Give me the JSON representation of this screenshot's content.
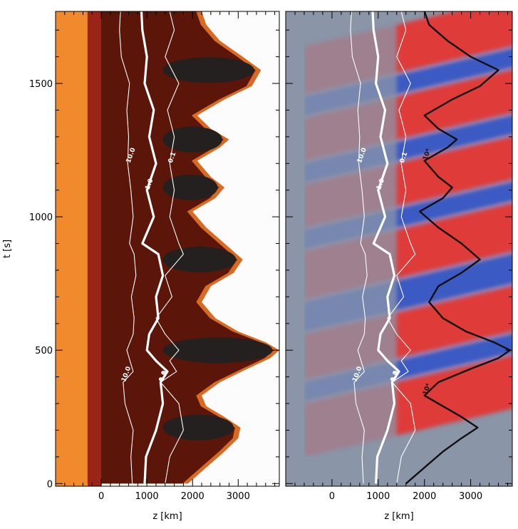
{
  "chart_data": [
    {
      "type": "heatmap",
      "panel": "left",
      "title": "",
      "xlabel": "z [km]",
      "ylabel": "t [s]",
      "xlim": [
        -1000,
        3900
      ],
      "ylim": [
        -10,
        1770
      ],
      "x_ticks": [
        0,
        1000,
        2000,
        3000
      ],
      "x_tick_labels": [
        "0",
        "1000",
        "2000",
        "3000"
      ],
      "y_ticks": [
        0,
        500,
        1000,
        1500
      ],
      "y_tick_labels": [
        "0",
        "500",
        "1000",
        "1500"
      ],
      "colors": {
        "photosphere": "#f08a2c",
        "band": "#9a2416",
        "body": "#5c1509",
        "hot": "#252020",
        "edge": "#d96a22",
        "corona": "#fcfcfc",
        "contour": "#ffffff"
      },
      "front_edge": {
        "t": [
          0,
          60,
          120,
          170,
          210,
          250,
          290,
          330,
          380,
          430,
          470,
          500,
          530,
          570,
          620,
          680,
          740,
          790,
          840,
          900,
          960,
          1020,
          1070,
          1110,
          1150,
          1210,
          1260,
          1290,
          1330,
          1380,
          1440,
          1490,
          1550,
          1600,
          1660,
          1720,
          1770
        ],
        "z": [
          1900,
          2300,
          2700,
          3000,
          3050,
          2700,
          2300,
          2200,
          2600,
          3200,
          3700,
          3900,
          3600,
          3000,
          2500,
          2200,
          2400,
          2900,
          3100,
          2700,
          2300,
          2000,
          2500,
          2700,
          2400,
          2100,
          2600,
          2800,
          2400,
          2100,
          2700,
          3300,
          3500,
          3100,
          2600,
          2300,
          2200
        ]
      },
      "contours": [
        {
          "label": "10.0",
          "t": [
            0,
            100,
            200,
            300,
            380,
            420,
            500,
            560,
            620,
            700,
            780,
            860,
            900,
            1000,
            1100,
            1200,
            1300,
            1400,
            1500,
            1600,
            1700,
            1770
          ],
          "z": [
            680,
            650,
            700,
            520,
            480,
            700,
            560,
            700,
            720,
            660,
            760,
            720,
            620,
            700,
            650,
            580,
            600,
            560,
            620,
            440,
            400,
            420
          ]
        },
        {
          "label": "1.0",
          "t": [
            0,
            100,
            200,
            300,
            380,
            420,
            460,
            500,
            560,
            620,
            700,
            780,
            860,
            900,
            960,
            1000,
            1100,
            1200,
            1300,
            1400,
            1500,
            1600,
            1700,
            1770
          ],
          "z": [
            950,
            980,
            1200,
            1350,
            1300,
            1450,
            1200,
            1000,
            1050,
            1250,
            1200,
            1350,
            1250,
            900,
            1050,
            1150,
            1000,
            1200,
            1050,
            1150,
            950,
            1000,
            900,
            880
          ]
        },
        {
          "label": "0.1",
          "t": [
            0,
            100,
            200,
            300,
            380,
            420,
            460,
            500,
            560,
            620,
            700,
            780,
            860,
            900,
            1000,
            1100,
            1200,
            1300,
            1400,
            1500,
            1600,
            1700,
            1770
          ],
          "z": [
            1400,
            1500,
            1800,
            1700,
            1300,
            1650,
            1500,
            1700,
            1400,
            1200,
            1550,
            1400,
            1800,
            1700,
            1500,
            1600,
            1500,
            1600,
            1450,
            1700,
            1400,
            1600,
            1500
          ]
        }
      ]
    },
    {
      "type": "heatmap",
      "panel": "right",
      "title": "",
      "xlabel": "z [km]",
      "ylabel": "",
      "xlim": [
        -1000,
        3900
      ],
      "ylim": [
        -10,
        1770
      ],
      "x_ticks": [
        0,
        1000,
        2000,
        3000
      ],
      "x_tick_labels": [
        "0",
        "1000",
        "2000",
        "3000"
      ],
      "y_ticks": [
        0,
        500,
        1000,
        1500
      ],
      "colors": {
        "background": "#8a95a8",
        "up": "#3050c8",
        "down": "#e8302c",
        "contour": "#ffffff",
        "shock": "#111111"
      },
      "bands": [
        {
          "kind": "down",
          "t0": 180,
          "t1": 380
        },
        {
          "kind": "up",
          "t0": 390,
          "t1": 460
        },
        {
          "kind": "down",
          "t0": 470,
          "t1": 640
        },
        {
          "kind": "up",
          "t0": 650,
          "t1": 760
        },
        {
          "kind": "down",
          "t0": 770,
          "t1": 950
        },
        {
          "kind": "up",
          "t0": 960,
          "t1": 1030
        },
        {
          "kind": "down",
          "t0": 1040,
          "t1": 1200
        },
        {
          "kind": "up",
          "t0": 1210,
          "t1": 1280
        },
        {
          "kind": "down",
          "t0": 1290,
          "t1": 1450
        },
        {
          "kind": "up",
          "t0": 1460,
          "t1": 1530
        },
        {
          "kind": "down",
          "t0": 1540,
          "t1": 1720
        }
      ],
      "contours": [
        {
          "label": "10.0",
          "t": [
            0,
            100,
            200,
            300,
            380,
            420,
            500,
            560,
            620,
            700,
            780,
            860,
            900,
            1000,
            1100,
            1200,
            1300,
            1400,
            1500,
            1600,
            1700,
            1770
          ],
          "z": [
            680,
            650,
            700,
            520,
            480,
            700,
            560,
            700,
            720,
            660,
            760,
            720,
            620,
            700,
            650,
            580,
            600,
            560,
            620,
            440,
            400,
            420
          ]
        },
        {
          "label": "1.0",
          "t": [
            0,
            100,
            200,
            300,
            380,
            420,
            460,
            500,
            560,
            620,
            700,
            780,
            860,
            900,
            960,
            1000,
            1100,
            1200,
            1300,
            1400,
            1500,
            1600,
            1700,
            1770
          ],
          "z": [
            950,
            980,
            1200,
            1350,
            1300,
            1450,
            1200,
            1000,
            1050,
            1250,
            1200,
            1350,
            1250,
            900,
            1050,
            1150,
            1000,
            1200,
            1050,
            1150,
            950,
            1000,
            900,
            880
          ]
        },
        {
          "label": "0.1",
          "t": [
            0,
            100,
            200,
            300,
            380,
            420,
            460,
            500,
            560,
            620,
            700,
            780,
            860,
            900,
            1000,
            1100,
            1200,
            1300,
            1400,
            1500,
            1600,
            1700,
            1770
          ],
          "z": [
            1400,
            1500,
            1800,
            1700,
            1300,
            1650,
            1500,
            1700,
            1400,
            1200,
            1550,
            1400,
            1800,
            1700,
            1500,
            1600,
            1500,
            1600,
            1450,
            1700,
            1400,
            1600,
            1500
          ]
        },
        {
          "label": "10⁴",
          "t": [
            0,
            60,
            120,
            170,
            210,
            250,
            290,
            330,
            380,
            430,
            470,
            500,
            530,
            570,
            620,
            680,
            740,
            790,
            840,
            900,
            960,
            1020,
            1070,
            1110,
            1150,
            1210,
            1260,
            1290,
            1330,
            1380,
            1440,
            1490,
            1550,
            1600,
            1660,
            1720,
            1770
          ],
          "z": [
            1600,
            2000,
            2400,
            2800,
            3150,
            2800,
            2400,
            2000,
            2300,
            3000,
            3600,
            3850,
            3500,
            2900,
            2400,
            2100,
            2300,
            2800,
            3200,
            2800,
            2300,
            1900,
            2400,
            2600,
            2300,
            2000,
            2500,
            2700,
            2300,
            2000,
            2600,
            3200,
            3600,
            3000,
            2500,
            2100,
            2000
          ]
        }
      ]
    }
  ]
}
